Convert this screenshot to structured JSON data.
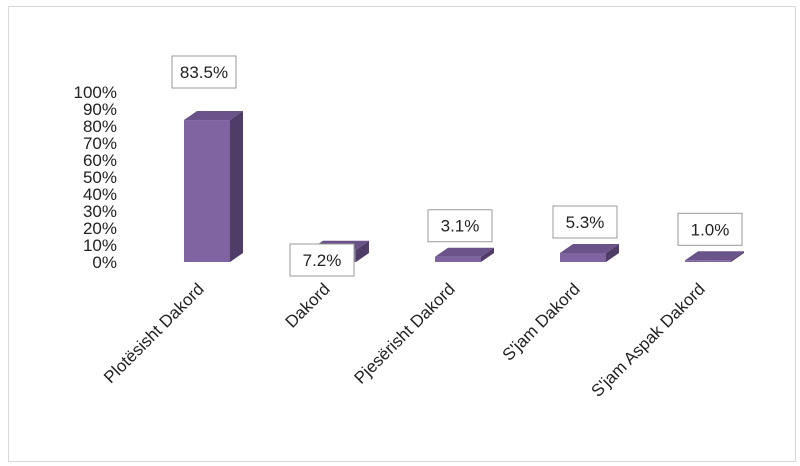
{
  "chart_data": {
    "type": "bar",
    "style": "3d-column",
    "categories": [
      "Plotësisht Dakord",
      "Dakord",
      "Pjesërisht Dakord",
      "S'jam Dakord",
      "S'jam Aspak Dakord"
    ],
    "values": [
      83.5,
      7.2,
      3.1,
      5.3,
      1.0
    ],
    "data_labels": [
      "83.5%",
      "7.2%",
      "3.1%",
      "5.3%",
      "1.0%"
    ],
    "ylim": [
      0,
      100
    ],
    "yticks": [
      "0%",
      "10%",
      "20%",
      "30%",
      "40%",
      "50%",
      "60%",
      "70%",
      "80%",
      "90%",
      "100%"
    ],
    "grid": false,
    "legend": "none",
    "colors": {
      "front": "#8064a2",
      "side": "#4f3d67",
      "top": "#6a5389"
    }
  }
}
